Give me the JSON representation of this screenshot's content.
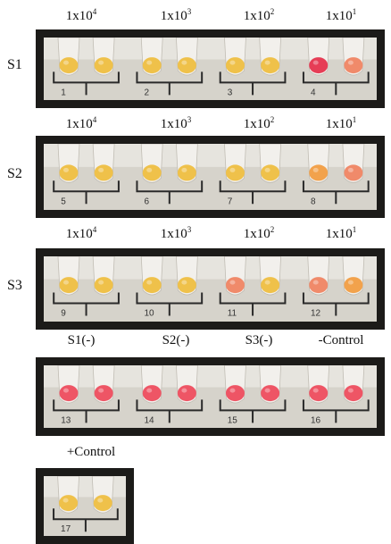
{
  "colors": {
    "frame": "#1c1b19",
    "card": "#d6d3cb",
    "yellow": "#efc14a",
    "orange": "#f2a24c",
    "pinkish": "#f08a6a",
    "pink": "#ee5565",
    "red": "#e63d56",
    "marker": "#2a2a2a"
  },
  "panels": [
    {
      "row_label": "S1",
      "headers": [
        {
          "base": "1x10",
          "exp": "4"
        },
        {
          "base": "1x10",
          "exp": "3"
        },
        {
          "base": "1x10",
          "exp": "2"
        },
        {
          "base": "1x10",
          "exp": "1"
        }
      ],
      "tubes": [
        {
          "tube": "1",
          "colors": [
            "yellow",
            "yellow"
          ]
        },
        {
          "tube": "2",
          "colors": [
            "yellow",
            "yellow"
          ]
        },
        {
          "tube": "3",
          "colors": [
            "yellow",
            "yellow"
          ]
        },
        {
          "tube": "4",
          "colors": [
            "red",
            "pinkish"
          ]
        }
      ]
    },
    {
      "row_label": "S2",
      "headers": [
        {
          "base": "1x10",
          "exp": "4"
        },
        {
          "base": "1x10",
          "exp": "3"
        },
        {
          "base": "1x10",
          "exp": "2"
        },
        {
          "base": "1x10",
          "exp": "1"
        }
      ],
      "tubes": [
        {
          "tube": "5",
          "colors": [
            "yellow",
            "yellow"
          ]
        },
        {
          "tube": "6",
          "colors": [
            "yellow",
            "yellow"
          ]
        },
        {
          "tube": "7",
          "colors": [
            "yellow",
            "yellow"
          ]
        },
        {
          "tube": "8",
          "colors": [
            "orange",
            "pinkish"
          ]
        }
      ]
    },
    {
      "row_label": "S3",
      "headers": [
        {
          "base": "1x10",
          "exp": "4"
        },
        {
          "base": "1x10",
          "exp": "3"
        },
        {
          "base": "1x10",
          "exp": "2"
        },
        {
          "base": "1x10",
          "exp": "1"
        }
      ],
      "tubes": [
        {
          "tube": "9",
          "colors": [
            "yellow",
            "yellow"
          ]
        },
        {
          "tube": "10",
          "colors": [
            "yellow",
            "yellow"
          ]
        },
        {
          "tube": "11",
          "colors": [
            "pinkish",
            "yellow"
          ]
        },
        {
          "tube": "12",
          "colors": [
            "pinkish",
            "orange"
          ]
        }
      ]
    },
    {
      "row_label": "",
      "headers": [
        {
          "base": "S1(-)",
          "exp": ""
        },
        {
          "base": "S2(-)",
          "exp": ""
        },
        {
          "base": "S3(-)",
          "exp": ""
        },
        {
          "base": "-Control",
          "exp": ""
        }
      ],
      "tubes": [
        {
          "tube": "13",
          "colors": [
            "pink",
            "pink"
          ]
        },
        {
          "tube": "14",
          "colors": [
            "pink",
            "pink"
          ]
        },
        {
          "tube": "15",
          "colors": [
            "pink",
            "pink"
          ]
        },
        {
          "tube": "16",
          "colors": [
            "pink",
            "pink"
          ]
        }
      ]
    },
    {
      "row_label": "",
      "headers": [
        {
          "base": "+Control",
          "exp": ""
        }
      ],
      "tubes": [
        {
          "tube": "17",
          "colors": [
            "yellow",
            "yellow"
          ]
        }
      ]
    }
  ]
}
